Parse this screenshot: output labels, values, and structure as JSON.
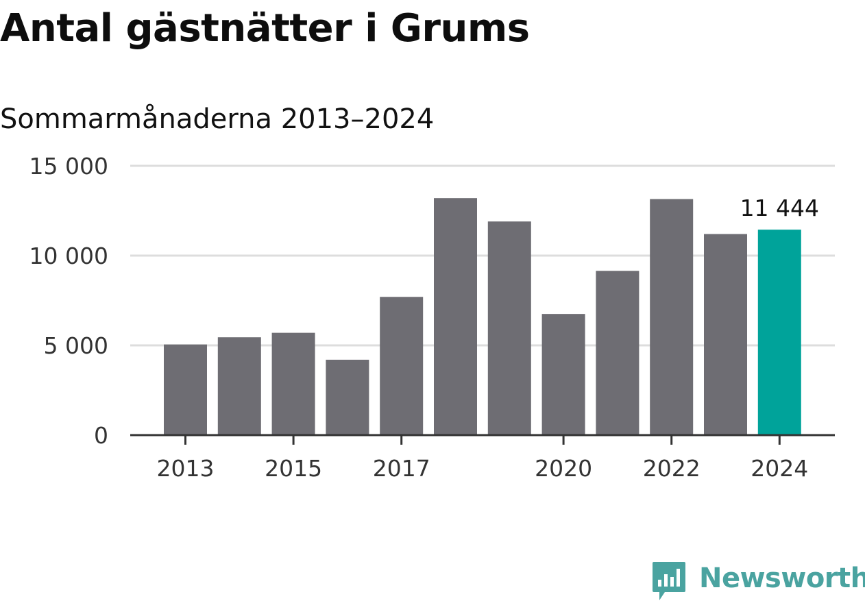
{
  "header": {
    "title": "Antal gästnätter i Grums",
    "subtitle": "Sommarmånaderna 2013–2024"
  },
  "brand": {
    "name": "Newsworthy",
    "color": "#4aa3a0"
  },
  "colors": {
    "bar": "#6e6d73",
    "highlight": "#00a39a",
    "grid": "#dddddd",
    "axis": "#333333"
  },
  "chart_data": {
    "type": "bar",
    "title": "Antal gästnätter i Grums",
    "subtitle": "Sommarmånaderna 2013–2024",
    "categories": [
      "2013",
      "2014",
      "2015",
      "2016",
      "2017",
      "2018",
      "2019",
      "2020",
      "2021",
      "2022",
      "2023",
      "2024"
    ],
    "values": [
      5050,
      5450,
      5700,
      4200,
      7700,
      13200,
      11900,
      6750,
      9150,
      13150,
      11200,
      11444
    ],
    "highlight_index": 11,
    "data_labels": [
      {
        "index": 11,
        "text": "11 444"
      }
    ],
    "x_tick_labels": [
      "2013",
      "2015",
      "2017",
      "2020",
      "2022",
      "2024"
    ],
    "y_ticks": [
      0,
      5000,
      10000,
      15000
    ],
    "y_tick_labels": [
      "0",
      "5 000",
      "10 000",
      "15 000"
    ],
    "ylim": [
      0,
      15000
    ],
    "grid": true,
    "legend": "none",
    "xlabel": "",
    "ylabel": ""
  }
}
